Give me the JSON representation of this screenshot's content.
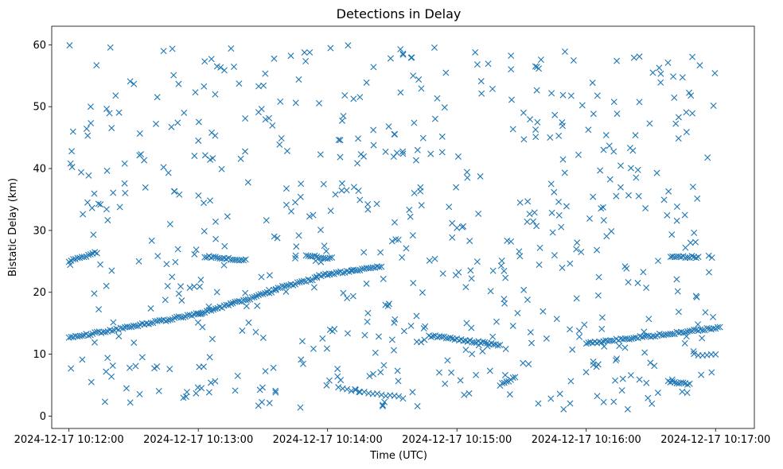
{
  "chart_data": {
    "type": "scatter",
    "title": "Detections in Delay",
    "xlabel": "Time (UTC)",
    "ylabel": "Bistatic Delay (km)",
    "marker": "x",
    "color": "#1f77b4",
    "xlim": [
      "2024-12-17 10:11:52",
      "2024-12-17 10:17:18"
    ],
    "ylim": [
      -2.0,
      63.0
    ],
    "xticks": [
      "2024-12-17 10:12:00",
      "2024-12-17 10:13:00",
      "2024-12-17 10:14:00",
      "2024-12-17 10:15:00",
      "2024-12-17 10:16:00",
      "2024-12-17 10:17:00"
    ],
    "yticks": [
      0,
      10,
      20,
      30,
      40,
      50,
      60
    ],
    "grid": false,
    "tracks": [
      {
        "from": "2024-12-17 10:12:00",
        "to": "2024-12-17 10:13:00",
        "y_start": 12.6,
        "y_end": 16.5,
        "step_s": 1,
        "name": ""
      },
      {
        "from": "2024-12-17 10:13:00",
        "to": "2024-12-17 10:13:36",
        "y_start": 16.5,
        "y_end": 20.3,
        "step_s": 1,
        "name": ""
      },
      {
        "from": "2024-12-17 10:13:36",
        "to": "2024-12-17 10:13:55",
        "y_start": 20.6,
        "y_end": 22.3,
        "step_s": 1,
        "name": ""
      },
      {
        "from": "2024-12-17 10:13:55",
        "to": "2024-12-17 10:14:25",
        "y_start": 22.6,
        "y_end": 24.2,
        "step_s": 1,
        "name": ""
      },
      {
        "from": "2024-12-17 10:14:47",
        "to": "2024-12-17 10:15:20",
        "y_start": 13.0,
        "y_end": 11.5,
        "step_s": 1,
        "name": ""
      },
      {
        "from": "2024-12-17 10:16:00",
        "to": "2024-12-17 10:17:02",
        "y_start": 11.7,
        "y_end": 14.3,
        "step_s": 1,
        "name": ""
      },
      {
        "from": "2024-12-17 10:14:05",
        "to": "2024-12-17 10:14:35",
        "y_start": 4.5,
        "y_end": 2.9,
        "step_s": 2,
        "name": ""
      },
      {
        "from": "2024-12-17 10:15:20",
        "to": "2024-12-17 10:15:27",
        "y_start": 5.0,
        "y_end": 6.3,
        "step_s": 1,
        "name": ""
      },
      {
        "from": "2024-12-17 10:12:00",
        "to": "2024-12-17 10:12:13",
        "y_start": 25.0,
        "y_end": 26.5,
        "step_s": 1,
        "name": ""
      },
      {
        "from": "2024-12-17 10:13:03",
        "to": "2024-12-17 10:13:22",
        "y_start": 25.8,
        "y_end": 25.2,
        "step_s": 1,
        "name": ""
      },
      {
        "from": "2024-12-17 10:13:50",
        "to": "2024-12-17 10:14:02",
        "y_start": 26.0,
        "y_end": 25.5,
        "step_s": 1,
        "name": ""
      },
      {
        "from": "2024-12-17 10:16:40",
        "to": "2024-12-17 10:16:52",
        "y_start": 25.8,
        "y_end": 25.7,
        "step_s": 1,
        "name": ""
      },
      {
        "from": "2024-12-17 10:16:38",
        "to": "2024-12-17 10:16:48",
        "y_start": 5.6,
        "y_end": 5.2,
        "step_s": 1,
        "name": ""
      },
      {
        "from": "2024-12-17 10:16:50",
        "to": "2024-12-17 10:17:00",
        "y_start": 9.9,
        "y_end": 9.9,
        "step_s": 2,
        "name": ""
      }
    ],
    "clutter": {
      "count": 620,
      "y_range": [
        1.0,
        60.0
      ],
      "seed": 20241217
    }
  }
}
